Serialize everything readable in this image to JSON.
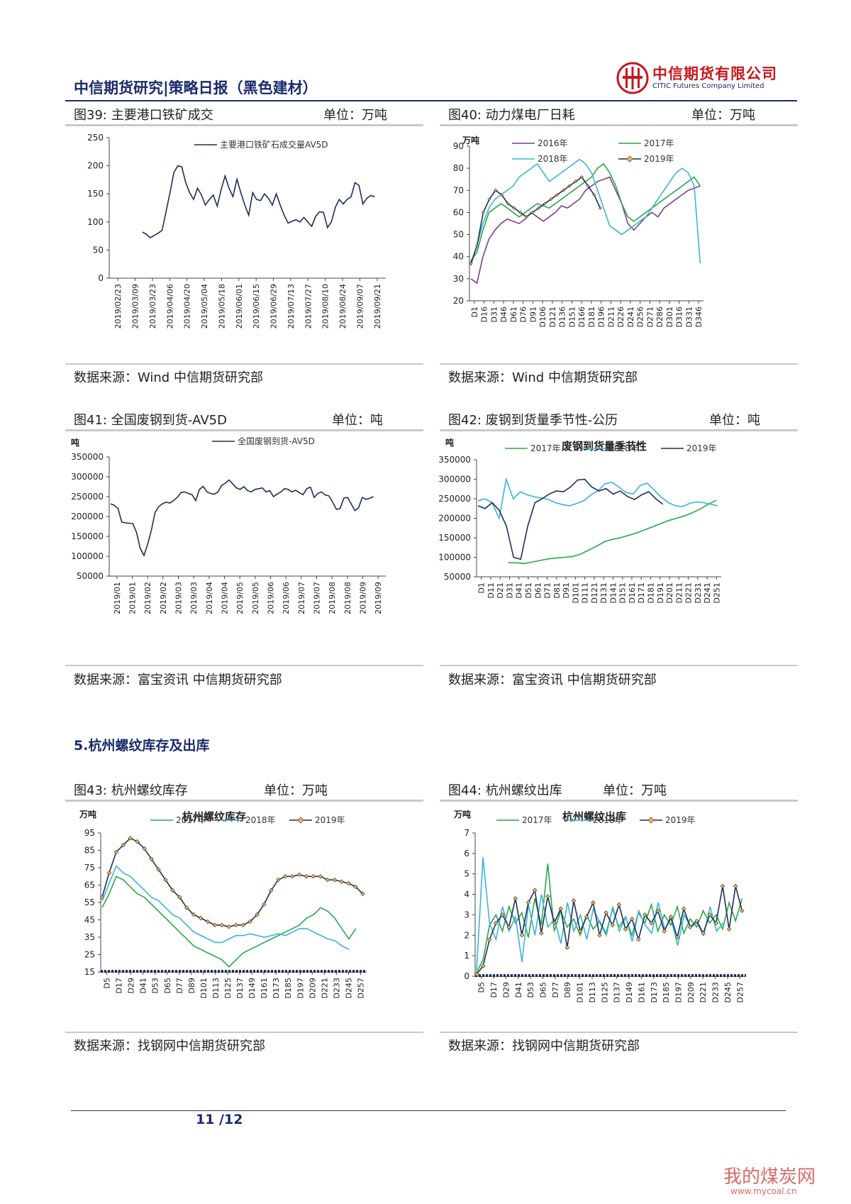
{
  "header": {
    "title": "中信期货研究|策略日报（黑色建材）",
    "logo_cn": "中信期货有限公司",
    "logo_en": "CITIC Futures Company Limited"
  },
  "section": {
    "title": "5.杭州螺纹库存及出库"
  },
  "footer": {
    "page": "11 /12"
  },
  "watermark": {
    "text": "我的煤炭网",
    "url": "www.mycoal.cn"
  },
  "colors": {
    "navy": "#1a2a6c",
    "red": "#c8171e",
    "c2016": "#7d3c98",
    "c2017": "#2aa84a",
    "c2018": "#3ab4d8",
    "c2019": "#1f2d5a",
    "marker": "#f0b24c"
  },
  "charts": [
    {
      "title": "图39: 主要港口铁矿成交",
      "unit": "单位：万吨",
      "source": "数据来源：Wind 中信期货研究部",
      "chart_data": {
        "type": "line",
        "title": "",
        "ylabel": "",
        "ylim": [
          0,
          250
        ],
        "yticks": [
          "250",
          "200",
          "150",
          "100",
          "50",
          "0"
        ],
        "xticks": [
          "2019/02/23",
          "2019/03/09",
          "2019/03/23",
          "2019/04/06",
          "2019/04/20",
          "2019/05/04",
          "2019/05/18",
          "2019/06/01",
          "2019/06/15",
          "2019/06/29",
          "2019/07/13",
          "2019/07/27",
          "2019/08/10",
          "2019/08/24",
          "2019/09/07",
          "2019/09/21"
        ],
        "series": [
          {
            "name": "主要港口铁矿石成交量AV5D",
            "values": [
              82,
              78,
              72,
              76,
              80,
              85,
              118,
              152,
              188,
              200,
              198,
              170,
              152,
              140,
              160,
              148,
              130,
              140,
              148,
              128,
              158,
              182,
              160,
              145,
              176,
              152,
              130,
              112,
              152,
              140,
              138,
              150,
              142,
              130,
              150,
              130,
              112,
              98,
              101,
              104,
              100,
              108,
              100,
              92,
              110,
              118,
              117,
              90,
              100,
              126,
              140,
              132,
              140,
              145,
              170,
              165,
              132,
              142,
              147,
              145
            ]
          }
        ]
      }
    },
    {
      "title": "图40: 动力煤电厂日耗",
      "unit": "单位：万吨",
      "source": "数据来源：Wind 中信期货研究部",
      "chart_data": {
        "type": "line",
        "title": "",
        "ylabel": "万吨",
        "ylim": [
          20,
          90
        ],
        "yticks": [
          "90",
          "80",
          "70",
          "60",
          "50",
          "40",
          "30",
          "20"
        ],
        "xticks": [
          "D1",
          "D16",
          "D31",
          "D46",
          "D61",
          "D76",
          "D91",
          "D106",
          "D121",
          "D136",
          "D151",
          "D166",
          "D181",
          "D196",
          "D211",
          "D226",
          "D241",
          "D256",
          "D271",
          "D286",
          "D301",
          "D316",
          "D331",
          "D346"
        ],
        "series": [
          {
            "name": "2016年",
            "values": [
              30,
              28,
              40,
              48,
              52,
              55,
              57,
              56,
              55,
              57,
              60,
              58,
              56,
              58,
              60,
              63,
              62,
              64,
              66,
              70,
              72,
              74,
              75,
              76,
              70,
              64,
              55,
              52,
              55,
              58,
              60,
              58,
              62,
              64,
              66,
              68,
              70,
              71,
              72
            ]
          },
          {
            "name": "2017年",
            "values": [
              38,
              42,
              52,
              60,
              62,
              64,
              62,
              60,
              58,
              60,
              62,
              64,
              63,
              62,
              64,
              66,
              68,
              70,
              72,
              74,
              76,
              80,
              82,
              78,
              72,
              64,
              58,
              56,
              58,
              60,
              62,
              64,
              66,
              68,
              70,
              72,
              74,
              76,
              72
            ]
          },
          {
            "name": "2018年",
            "values": [
              36,
              45,
              55,
              62,
              66,
              68,
              70,
              72,
              76,
              78,
              80,
              82,
              78,
              74,
              76,
              78,
              80,
              82,
              84,
              82,
              78,
              70,
              62,
              54,
              52,
              50,
              52,
              54,
              56,
              58,
              62,
              66,
              70,
              74,
              78,
              80,
              78,
              72,
              37
            ]
          },
          {
            "name": "2019年",
            "values": [
              37,
              45,
              60,
              66,
              70,
              68,
              64,
              62,
              60,
              58,
              60,
              62,
              64,
              66,
              68,
              70,
              72,
              74,
              76,
              72,
              68,
              62
            ]
          }
        ]
      }
    },
    {
      "title": "图41: 全国废钢到货-AV5D",
      "unit": "单位：吨",
      "source": "数据来源：富宝资讯 中信期货研究部",
      "chart_data": {
        "type": "line",
        "title": "",
        "ylabel": "吨",
        "ylim": [
          50000,
          350000
        ],
        "yticks": [
          "350000",
          "300000",
          "250000",
          "200000",
          "150000",
          "100000",
          "50000"
        ],
        "xticks": [
          "2019/01",
          "2019/01",
          "2019/02",
          "2019/02",
          "2019/03",
          "2019/03",
          "2019/04",
          "2019/04",
          "2019/05",
          "2019/05",
          "2019/06",
          "2019/06",
          "2019/07",
          "2019/07",
          "2019/08",
          "2019/08",
          "2019/09",
          "2019/09"
        ],
        "series": [
          {
            "name": "全国废钢到货-AV5D",
            "values": [
              232000,
              228000,
              220000,
              186000,
              184000,
              183000,
              182000,
              160000,
              120000,
              102000,
              130000,
              165000,
              210000,
              225000,
              232000,
              236000,
              234000,
              240000,
              248000,
              260000,
              262000,
              258000,
              255000,
              240000,
              268000,
              276000,
              262000,
              258000,
              256000,
              262000,
              278000,
              284000,
              292000,
              282000,
              272000,
              268000,
              275000,
              265000,
              262000,
              268000,
              270000,
              272000,
              262000,
              265000,
              250000,
              256000,
              262000,
              270000,
              268000,
              262000,
              266000,
              260000,
              255000,
              270000,
              274000,
              248000,
              258000,
              262000,
              254000,
              252000,
              236000,
              218000,
              220000,
              246000,
              248000,
              232000,
              215000,
              222000,
              248000,
              243000,
              246000,
              250000
            ]
          }
        ]
      }
    },
    {
      "title": "图42: 废钢到货量季节性-公历",
      "unit": "单位：吨",
      "source": "数据来源：富宝资讯 中信期货研究部",
      "chart_data": {
        "type": "line",
        "title": "废钢到货量季节性",
        "ylabel": "吨",
        "ylim": [
          50000,
          350000
        ],
        "yticks": [
          "350000",
          "300000",
          "250000",
          "200000",
          "150000",
          "100000",
          "50000"
        ],
        "xticks": [
          "D1",
          "D11",
          "D21",
          "D31",
          "D41",
          "D51",
          "D61",
          "D71",
          "D81",
          "D91",
          "D101",
          "D111",
          "D121",
          "D131",
          "D141",
          "D151",
          "D161",
          "D171",
          "D181",
          "D191",
          "D201",
          "D211",
          "D221",
          "D231",
          "D241",
          "D251"
        ],
        "series": [
          {
            "name": "2017年",
            "values": [
              86000,
              86000,
              84000,
              88000,
              92000,
              96000,
              98000,
              100000,
              102000,
              108000,
              118000,
              128000,
              140000,
              146000,
              150000,
              156000,
              162000,
              170000,
              178000,
              186000,
              194000,
              200000,
              206000,
              214000,
              224000,
              236000,
              246000
            ]
          },
          {
            "name": "2018年",
            "values": [
              245000,
              250000,
              240000,
              200000,
              300000,
              250000,
              268000,
              260000,
              255000,
              252000,
              248000,
              240000,
              235000,
              232000,
              238000,
              245000,
              260000,
              270000,
              288000,
              292000,
              280000,
              266000,
              262000,
              284000,
              290000,
              272000,
              254000,
              240000,
              232000,
              230000,
              238000,
              242000,
              240000,
              236000,
              232000
            ]
          },
          {
            "name": "2019年",
            "values": [
              232000,
              225000,
              240000,
              220000,
              180000,
              100000,
              95000,
              180000,
              240000,
              250000,
              262000,
              270000,
              268000,
              280000,
              298000,
              300000,
              280000,
              270000,
              276000,
              262000,
              270000,
              256000,
              248000,
              260000,
              268000,
              250000,
              236000
            ]
          }
        ]
      }
    },
    {
      "title": "图43: 杭州螺纹库存",
      "unit": "单位：万吨",
      "source": "数据来源：找钢网中信期货研究部",
      "chart_data": {
        "type": "line",
        "title": "杭州螺纹库存",
        "ylabel": "万吨",
        "ylim": [
          15,
          95
        ],
        "yticks": [
          "95",
          "85",
          "75",
          "65",
          "55",
          "45",
          "35",
          "25",
          "15"
        ],
        "xticks": [
          "D5",
          "D17",
          "D29",
          "D41",
          "D53",
          "D65",
          "D77",
          "D89",
          "D101",
          "D113",
          "D125",
          "D137",
          "D149",
          "D161",
          "D173",
          "D185",
          "D197",
          "D209",
          "D221",
          "D233",
          "D245",
          "D257"
        ],
        "series": [
          {
            "name": "2017年",
            "values": [
              52,
              60,
              70,
              68,
              64,
              60,
              58,
              54,
              50,
              46,
              42,
              38,
              34,
              30,
              28,
              26,
              24,
              22,
              18,
              22,
              26,
              28,
              30,
              32,
              34,
              36,
              38,
              40,
              42,
              46,
              48,
              52,
              50,
              46,
              40,
              34,
              40
            ]
          },
          {
            "name": "2018年",
            "values": [
              56,
              66,
              76,
              72,
              70,
              66,
              62,
              58,
              56,
              52,
              48,
              46,
              42,
              38,
              36,
              34,
              32,
              32,
              34,
              36,
              36,
              37,
              36,
              35,
              36,
              37,
              36,
              38,
              40,
              40,
              38,
              36,
              34,
              33,
              30,
              28
            ]
          },
          {
            "name": "2019年",
            "values": [
              58,
              72,
              84,
              88,
              92,
              90,
              86,
              80,
              74,
              68,
              62,
              58,
              52,
              48,
              46,
              44,
              42,
              42,
              41,
              42,
              42,
              44,
              48,
              54,
              62,
              68,
              70,
              70,
              71,
              70,
              70,
              70,
              68,
              68,
              67,
              66,
              64,
              60
            ]
          }
        ]
      }
    },
    {
      "title": "图44: 杭州螺纹出库",
      "unit": "单位：万吨",
      "source": "数据来源：找钢网中信期货研究部",
      "chart_data": {
        "type": "line",
        "title": "杭州螺纹出库",
        "ylabel": "万吨",
        "ylim": [
          0,
          7
        ],
        "yticks": [
          "7",
          "6",
          "5",
          "4",
          "3",
          "2",
          "1",
          "0"
        ],
        "xticks": [
          "D5",
          "D17",
          "D29",
          "D41",
          "D53",
          "D65",
          "D77",
          "D89",
          "D101",
          "D113",
          "D125",
          "D137",
          "D149",
          "D161",
          "D173",
          "D185",
          "D197",
          "D209",
          "D221",
          "D233",
          "D245",
          "D257"
        ],
        "series": [
          {
            "name": "2017年",
            "values": [
              0.2,
              0.8,
              2.5,
              3.0,
              2.2,
              3.4,
              2.6,
              3.1,
              1.9,
              3.8,
              2.5,
              5.5,
              2.2,
              3.2,
              2.4,
              2.8,
              2.0,
              3.0,
              2.3,
              2.7,
              2.1,
              3.3,
              2.4,
              2.9,
              2.0,
              3.1,
              2.6,
              3.5,
              2.2,
              3.0,
              2.5,
              3.4,
              2.1,
              2.8,
              2.4,
              3.2,
              2.6,
              3.0,
              2.3,
              3.6,
              2.7,
              3.8
            ]
          },
          {
            "name": "2018年",
            "values": [
              0.3,
              5.8,
              2.6,
              1.8,
              3.4,
              2.2,
              2.9,
              0.7,
              3.5,
              2.0,
              4.0,
              2.4,
              2.8,
              1.6,
              3.6,
              2.2,
              3.0,
              1.8,
              3.3,
              2.6,
              2.0,
              3.4,
              2.2,
              2.9,
              1.7,
              3.2,
              2.5,
              2.1,
              3.6,
              2.3,
              2.8,
              1.5,
              3.0,
              2.4,
              2.6,
              2.0,
              3.4,
              2.2,
              2.6
            ]
          },
          {
            "name": "2019年",
            "values": [
              0.1,
              0.5,
              1.8,
              2.6,
              3.0,
              2.4,
              3.8,
              2.0,
              3.6,
              4.2,
              2.1,
              3.9,
              2.6,
              3.3,
              1.4,
              3.7,
              2.2,
              2.9,
              3.6,
              2.0,
              3.1,
              2.5,
              3.5,
              2.3,
              2.8,
              1.8,
              3.0,
              2.6,
              3.2,
              2.2,
              2.9,
              1.9,
              3.3,
              2.4,
              2.7,
              2.1,
              3.0,
              2.6,
              4.4,
              2.3,
              4.4,
              3.2
            ]
          }
        ]
      }
    }
  ]
}
